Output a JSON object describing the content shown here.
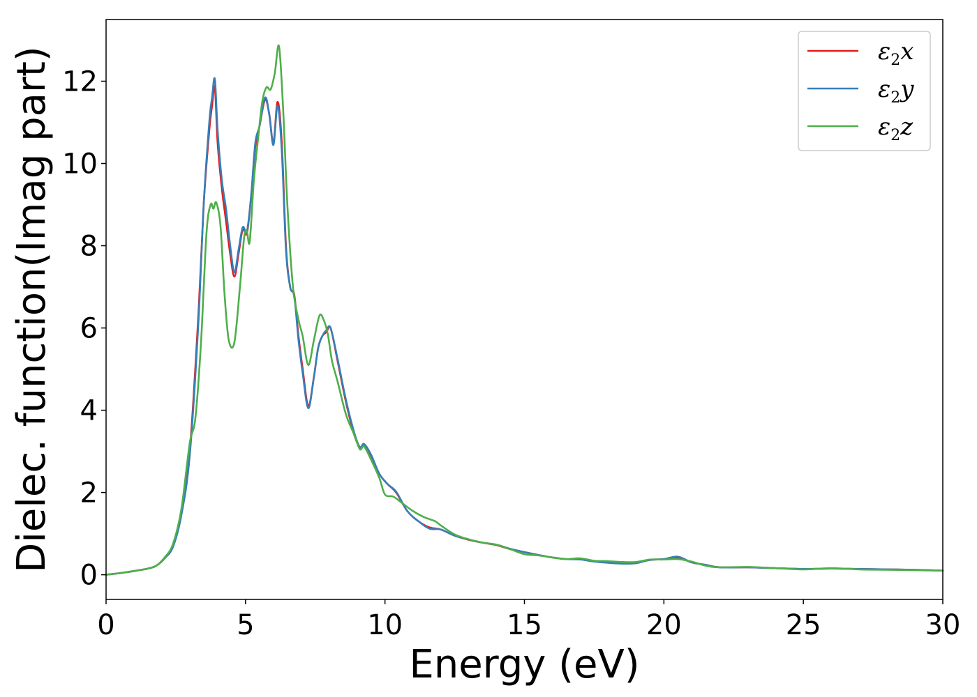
{
  "chart_data": {
    "type": "line",
    "xlabel": "Energy (eV)",
    "ylabel": "Dielec. function(Imag part)",
    "xlim": [
      0,
      30
    ],
    "ylim": [
      -0.6,
      13.5
    ],
    "xticks": [
      0,
      5,
      10,
      15,
      20,
      25,
      30
    ],
    "yticks": [
      0,
      2,
      4,
      6,
      8,
      10,
      12
    ],
    "grid": false,
    "legend": "top-right",
    "series": [
      {
        "name": "ε₂x",
        "legend_base": "ε",
        "legend_sub": "2",
        "legend_var": "x",
        "color": "#e41a1c",
        "x": [
          0,
          0.5,
          1,
          1.5,
          1.8,
          2.1,
          2.4,
          2.7,
          3.0,
          3.3,
          3.5,
          3.7,
          3.8,
          3.9,
          4.0,
          4.15,
          4.3,
          4.45,
          4.6,
          4.75,
          4.9,
          5.05,
          5.2,
          5.35,
          5.5,
          5.7,
          5.85,
          6.0,
          6.15,
          6.3,
          6.45,
          6.6,
          6.75,
          6.9,
          7.05,
          7.25,
          7.45,
          7.6,
          7.75,
          7.9,
          8.05,
          8.3,
          8.6,
          8.9,
          9.1,
          9.25,
          9.5,
          9.8,
          10.1,
          10.4,
          10.8,
          11.2,
          11.6,
          12.0,
          12.5,
          13.0,
          13.5,
          14.0,
          14.5,
          15.0,
          15.5,
          16.0,
          16.5,
          17.0,
          17.5,
          18.0,
          18.5,
          19.0,
          19.5,
          20.0,
          20.5,
          21.0,
          21.5,
          22.0,
          23.0,
          24.0,
          25.0,
          26.0,
          27.0,
          28.0,
          29.0,
          30.0
        ],
        "values": [
          0.0,
          0.04,
          0.09,
          0.15,
          0.22,
          0.4,
          0.7,
          1.5,
          3.0,
          6.2,
          9.0,
          10.8,
          11.4,
          11.85,
          10.5,
          9.4,
          8.6,
          7.8,
          7.25,
          7.8,
          8.4,
          8.3,
          9.2,
          10.4,
          10.9,
          11.55,
          11.2,
          10.5,
          11.5,
          10.5,
          8.0,
          7.0,
          6.8,
          5.8,
          5.0,
          4.1,
          4.8,
          5.5,
          5.8,
          5.9,
          6.0,
          5.2,
          4.2,
          3.4,
          3.1,
          3.15,
          2.9,
          2.45,
          2.2,
          2.0,
          1.55,
          1.3,
          1.15,
          1.1,
          0.95,
          0.85,
          0.78,
          0.72,
          0.62,
          0.55,
          0.48,
          0.42,
          0.38,
          0.38,
          0.33,
          0.3,
          0.28,
          0.3,
          0.36,
          0.38,
          0.42,
          0.3,
          0.24,
          0.18,
          0.18,
          0.16,
          0.14,
          0.15,
          0.14,
          0.13,
          0.12,
          0.1
        ]
      },
      {
        "name": "ε₂y",
        "legend_base": "ε",
        "legend_sub": "2",
        "legend_var": "y",
        "color": "#377eb8",
        "x": [
          0,
          0.5,
          1,
          1.5,
          1.8,
          2.1,
          2.4,
          2.7,
          3.0,
          3.3,
          3.5,
          3.7,
          3.8,
          3.9,
          4.0,
          4.15,
          4.3,
          4.45,
          4.6,
          4.75,
          4.9,
          5.05,
          5.2,
          5.35,
          5.5,
          5.7,
          5.85,
          6.0,
          6.15,
          6.3,
          6.45,
          6.6,
          6.75,
          6.9,
          7.05,
          7.25,
          7.45,
          7.6,
          7.75,
          7.9,
          8.05,
          8.3,
          8.6,
          8.9,
          9.1,
          9.25,
          9.5,
          9.8,
          10.1,
          10.4,
          10.8,
          11.2,
          11.6,
          12.0,
          12.5,
          13.0,
          13.5,
          14.0,
          14.5,
          15.0,
          15.5,
          16.0,
          16.5,
          17.0,
          17.5,
          18.0,
          18.5,
          19.0,
          19.5,
          20.0,
          20.5,
          21.0,
          21.5,
          22.0,
          23.0,
          24.0,
          25.0,
          26.0,
          27.0,
          28.0,
          29.0,
          30.0
        ],
        "values": [
          0.0,
          0.04,
          0.09,
          0.15,
          0.22,
          0.4,
          0.68,
          1.45,
          2.9,
          6.0,
          9.0,
          11.0,
          11.6,
          12.05,
          10.8,
          9.6,
          8.9,
          8.0,
          7.35,
          7.9,
          8.45,
          8.35,
          9.2,
          10.5,
          10.9,
          11.6,
          11.2,
          10.45,
          11.4,
          10.3,
          7.9,
          7.0,
          6.75,
          5.7,
          4.9,
          4.05,
          4.8,
          5.5,
          5.8,
          5.95,
          6.0,
          5.25,
          4.25,
          3.45,
          3.1,
          3.18,
          2.92,
          2.45,
          2.2,
          2.02,
          1.55,
          1.3,
          1.12,
          1.1,
          0.95,
          0.86,
          0.78,
          0.73,
          0.63,
          0.55,
          0.48,
          0.42,
          0.38,
          0.37,
          0.32,
          0.29,
          0.27,
          0.28,
          0.36,
          0.38,
          0.44,
          0.3,
          0.24,
          0.18,
          0.18,
          0.16,
          0.14,
          0.15,
          0.14,
          0.13,
          0.12,
          0.1
        ]
      },
      {
        "name": "ε₂z",
        "legend_base": "ε",
        "legend_sub": "2",
        "legend_var": "z",
        "color": "#4daf4a",
        "x": [
          0,
          0.5,
          1,
          1.5,
          1.8,
          2.1,
          2.4,
          2.7,
          3.0,
          3.2,
          3.4,
          3.6,
          3.75,
          3.85,
          3.95,
          4.1,
          4.25,
          4.4,
          4.6,
          4.8,
          4.95,
          5.05,
          5.15,
          5.3,
          5.45,
          5.6,
          5.75,
          5.9,
          6.05,
          6.2,
          6.35,
          6.5,
          6.7,
          6.9,
          7.05,
          7.25,
          7.45,
          7.65,
          7.8,
          7.95,
          8.1,
          8.3,
          8.6,
          8.9,
          9.1,
          9.25,
          9.5,
          9.8,
          10.0,
          10.3,
          10.6,
          11.0,
          11.4,
          11.8,
          12.0,
          12.5,
          13.0,
          13.5,
          14.0,
          14.5,
          15.0,
          15.5,
          16.0,
          16.5,
          17.0,
          17.5,
          18.0,
          18.5,
          19.0,
          19.5,
          20.0,
          20.5,
          21.0,
          21.5,
          22.0,
          23.0,
          24.0,
          25.0,
          26.0,
          27.0,
          28.0,
          29.0,
          30.0
        ],
        "values": [
          0.0,
          0.04,
          0.09,
          0.15,
          0.22,
          0.42,
          0.75,
          1.6,
          3.2,
          3.8,
          5.6,
          8.3,
          9.0,
          8.9,
          9.05,
          8.5,
          6.8,
          5.7,
          5.65,
          7.0,
          8.2,
          8.35,
          8.1,
          9.6,
          10.6,
          11.5,
          11.85,
          11.8,
          12.2,
          12.85,
          11.3,
          9.0,
          7.0,
          6.2,
          5.8,
          5.1,
          5.7,
          6.3,
          6.2,
          5.85,
          5.2,
          4.7,
          3.9,
          3.4,
          3.05,
          3.12,
          2.8,
          2.35,
          1.95,
          1.9,
          1.75,
          1.55,
          1.4,
          1.3,
          1.2,
          0.98,
          0.86,
          0.78,
          0.73,
          0.62,
          0.5,
          0.47,
          0.42,
          0.38,
          0.4,
          0.34,
          0.33,
          0.31,
          0.31,
          0.37,
          0.37,
          0.38,
          0.32,
          0.22,
          0.18,
          0.19,
          0.16,
          0.13,
          0.16,
          0.13,
          0.12,
          0.11,
          0.1
        ]
      }
    ]
  }
}
